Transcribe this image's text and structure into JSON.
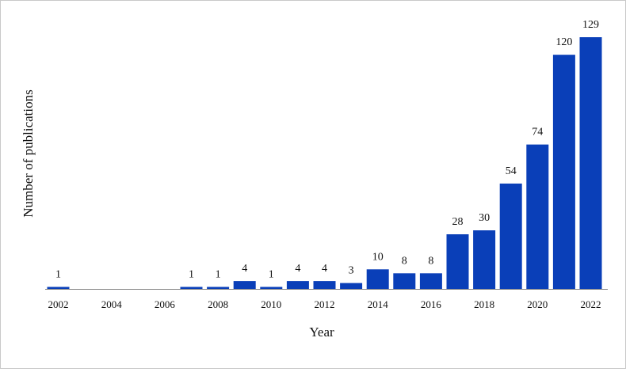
{
  "chart_data": {
    "type": "bar",
    "categories": [
      "2002",
      "2003",
      "2004",
      "2005",
      "2006",
      "2007",
      "2008",
      "2009",
      "2010",
      "2011",
      "2012",
      "2013",
      "2014",
      "2015",
      "2016",
      "2017",
      "2018",
      "2019",
      "2020",
      "2021",
      "2022"
    ],
    "values": [
      1,
      0,
      0,
      0,
      0,
      1,
      1,
      4,
      1,
      4,
      4,
      3,
      10,
      8,
      8,
      28,
      30,
      54,
      74,
      120,
      129
    ],
    "data_labels": [
      "1",
      "",
      "",
      "",
      "",
      "1",
      "1",
      "4",
      "1",
      "4",
      "4",
      "3",
      "10",
      "8",
      "8",
      "28",
      "30",
      "54",
      "74",
      "120",
      "129"
    ],
    "x_tick_labels": [
      "2002",
      "2004",
      "2006",
      "2008",
      "2010",
      "2012",
      "2014",
      "2016",
      "2018",
      "2020",
      "2022"
    ],
    "xlabel": "Year",
    "ylabel": "Number of publications",
    "ylim": [
      0,
      129
    ],
    "bar_color": "#0a3fb8",
    "axis_color": "#808080",
    "grid": false,
    "legend": "none"
  }
}
